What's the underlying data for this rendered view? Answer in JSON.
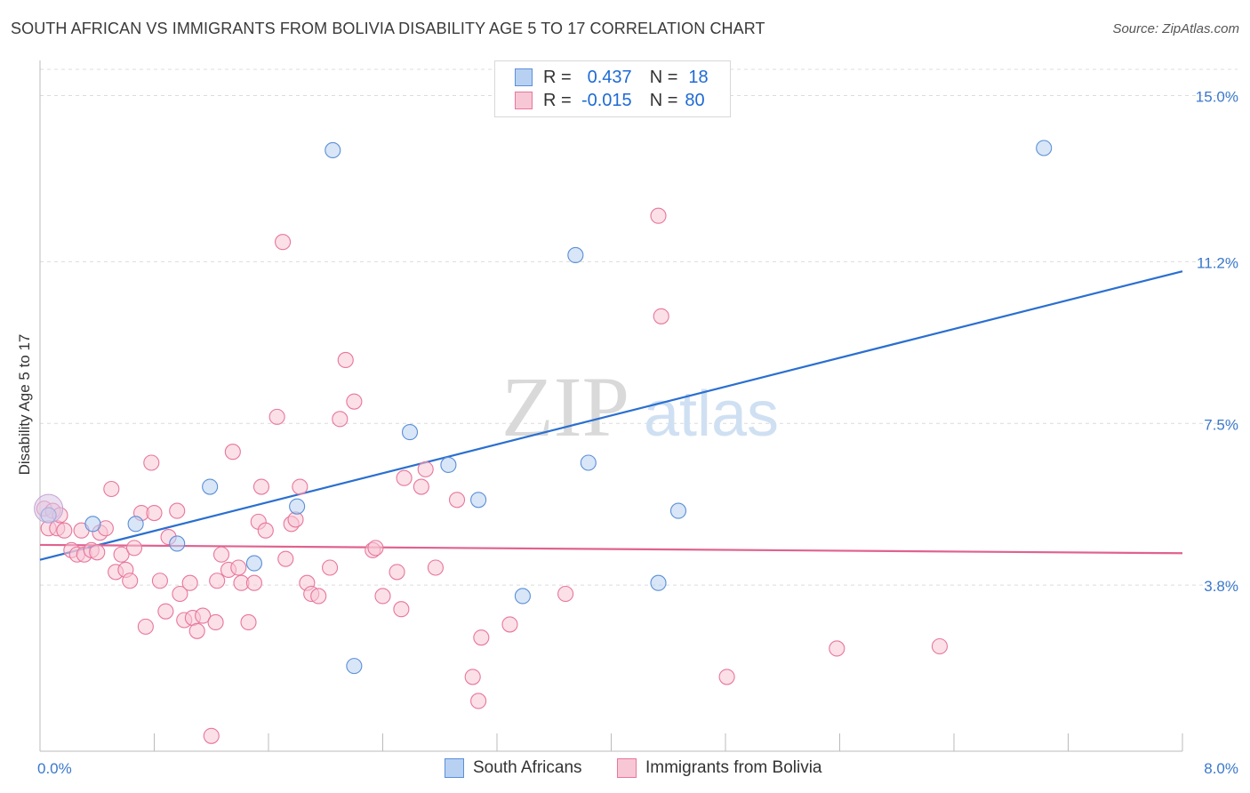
{
  "header": {
    "title": "SOUTH AFRICAN VS IMMIGRANTS FROM BOLIVIA DISABILITY AGE 5 TO 17 CORRELATION CHART",
    "source": "Source: ZipAtlas.com"
  },
  "watermark": {
    "zip": "ZIP",
    "atlas": "atlas"
  },
  "legend": {
    "r_label": "R =",
    "n_label": "N =",
    "rows": [
      {
        "r": "0.437",
        "n": "18",
        "color": "#5b8fd6",
        "fill": "#b8d1f3"
      },
      {
        "r": "-0.015",
        "n": "80",
        "color": "#e8769b",
        "fill": "#f8c7d6"
      }
    ]
  },
  "chart_data": {
    "type": "scatter",
    "title": "SOUTH AFRICAN VS IMMIGRANTS FROM BOLIVIA DISABILITY AGE 5 TO 17 CORRELATION CHART",
    "xlabel": "",
    "ylabel": "Disability Age 5 to 17",
    "xlim": [
      0,
      8.0
    ],
    "ylim": [
      0,
      15.6
    ],
    "x_tick_labels": [
      "0.0%",
      "8.0%"
    ],
    "y_ticks": [
      3.8,
      7.5,
      11.2,
      15.0
    ],
    "y_tick_labels": [
      "3.8%",
      "7.5%",
      "11.2%",
      "15.0%"
    ],
    "grid": true,
    "legend_position": "top-center",
    "series": [
      {
        "name": "South Africans",
        "color": "#5b8fd6",
        "fill": "#b8d1f3",
        "trend": {
          "x": [
            0,
            8.0
          ],
          "y": [
            4.38,
            10.98
          ]
        },
        "points": [
          {
            "x": 0.06,
            "y": 5.4
          },
          {
            "x": 0.37,
            "y": 5.2
          },
          {
            "x": 0.67,
            "y": 5.2
          },
          {
            "x": 0.96,
            "y": 4.75
          },
          {
            "x": 1.19,
            "y": 6.05
          },
          {
            "x": 1.5,
            "y": 4.3
          },
          {
            "x": 1.8,
            "y": 5.6
          },
          {
            "x": 2.05,
            "y": 13.75
          },
          {
            "x": 2.2,
            "y": 1.95
          },
          {
            "x": 2.59,
            "y": 7.3
          },
          {
            "x": 2.86,
            "y": 6.55
          },
          {
            "x": 3.07,
            "y": 5.75
          },
          {
            "x": 3.38,
            "y": 3.55
          },
          {
            "x": 3.75,
            "y": 11.35
          },
          {
            "x": 3.84,
            "y": 6.6
          },
          {
            "x": 4.33,
            "y": 3.85
          },
          {
            "x": 4.47,
            "y": 5.5
          },
          {
            "x": 7.03,
            "y": 13.8
          }
        ]
      },
      {
        "name": "Immigrants from Bolivia",
        "color": "#e8769b",
        "fill": "#f8c7d6",
        "trend": {
          "x": [
            0,
            8.0
          ],
          "y": [
            4.72,
            4.53
          ]
        },
        "points": [
          {
            "x": 0.03,
            "y": 5.55
          },
          {
            "x": 0.06,
            "y": 5.1
          },
          {
            "x": 0.09,
            "y": 5.5
          },
          {
            "x": 0.12,
            "y": 5.1
          },
          {
            "x": 0.14,
            "y": 5.4
          },
          {
            "x": 0.17,
            "y": 5.05
          },
          {
            "x": 0.22,
            "y": 4.6
          },
          {
            "x": 0.26,
            "y": 4.5
          },
          {
            "x": 0.29,
            "y": 5.05
          },
          {
            "x": 0.31,
            "y": 4.5
          },
          {
            "x": 0.36,
            "y": 4.6
          },
          {
            "x": 0.4,
            "y": 4.55
          },
          {
            "x": 0.42,
            "y": 5.0
          },
          {
            "x": 0.46,
            "y": 5.1
          },
          {
            "x": 0.5,
            "y": 6.0
          },
          {
            "x": 0.53,
            "y": 4.1
          },
          {
            "x": 0.57,
            "y": 4.5
          },
          {
            "x": 0.6,
            "y": 4.15
          },
          {
            "x": 0.63,
            "y": 3.9
          },
          {
            "x": 0.66,
            "y": 4.65
          },
          {
            "x": 0.71,
            "y": 5.45
          },
          {
            "x": 0.74,
            "y": 2.85
          },
          {
            "x": 0.78,
            "y": 6.6
          },
          {
            "x": 0.8,
            "y": 5.45
          },
          {
            "x": 0.84,
            "y": 3.9
          },
          {
            "x": 0.88,
            "y": 3.2
          },
          {
            "x": 0.9,
            "y": 4.9
          },
          {
            "x": 0.96,
            "y": 5.5
          },
          {
            "x": 0.98,
            "y": 3.6
          },
          {
            "x": 1.01,
            "y": 3.0
          },
          {
            "x": 1.05,
            "y": 3.85
          },
          {
            "x": 1.07,
            "y": 3.05
          },
          {
            "x": 1.1,
            "y": 2.75
          },
          {
            "x": 1.14,
            "y": 3.1
          },
          {
            "x": 1.2,
            "y": 0.35
          },
          {
            "x": 1.23,
            "y": 2.95
          },
          {
            "x": 1.24,
            "y": 3.9
          },
          {
            "x": 1.27,
            "y": 4.5
          },
          {
            "x": 1.32,
            "y": 4.15
          },
          {
            "x": 1.35,
            "y": 6.85
          },
          {
            "x": 1.39,
            "y": 4.2
          },
          {
            "x": 1.41,
            "y": 3.85
          },
          {
            "x": 1.46,
            "y": 2.95
          },
          {
            "x": 1.5,
            "y": 3.85
          },
          {
            "x": 1.53,
            "y": 5.25
          },
          {
            "x": 1.55,
            "y": 6.05
          },
          {
            "x": 1.58,
            "y": 5.05
          },
          {
            "x": 1.66,
            "y": 7.65
          },
          {
            "x": 1.7,
            "y": 11.65
          },
          {
            "x": 1.72,
            "y": 4.4
          },
          {
            "x": 1.76,
            "y": 5.2
          },
          {
            "x": 1.79,
            "y": 5.3
          },
          {
            "x": 1.82,
            "y": 6.05
          },
          {
            "x": 1.87,
            "y": 3.85
          },
          {
            "x": 1.9,
            "y": 3.6
          },
          {
            "x": 1.95,
            "y": 3.55
          },
          {
            "x": 2.03,
            "y": 4.2
          },
          {
            "x": 2.1,
            "y": 7.6
          },
          {
            "x": 2.14,
            "y": 8.95
          },
          {
            "x": 2.2,
            "y": 8.0
          },
          {
            "x": 2.33,
            "y": 4.6
          },
          {
            "x": 2.35,
            "y": 4.65
          },
          {
            "x": 2.4,
            "y": 3.55
          },
          {
            "x": 2.5,
            "y": 4.1
          },
          {
            "x": 2.53,
            "y": 3.25
          },
          {
            "x": 2.55,
            "y": 6.25
          },
          {
            "x": 2.67,
            "y": 6.05
          },
          {
            "x": 2.7,
            "y": 6.45
          },
          {
            "x": 2.77,
            "y": 4.2
          },
          {
            "x": 2.92,
            "y": 5.75
          },
          {
            "x": 3.03,
            "y": 1.7
          },
          {
            "x": 3.07,
            "y": 1.15
          },
          {
            "x": 3.09,
            "y": 2.6
          },
          {
            "x": 3.29,
            "y": 2.9
          },
          {
            "x": 3.68,
            "y": 3.6
          },
          {
            "x": 4.33,
            "y": 12.25
          },
          {
            "x": 4.35,
            "y": 9.95
          },
          {
            "x": 4.81,
            "y": 1.7
          },
          {
            "x": 5.58,
            "y": 2.35
          },
          {
            "x": 6.3,
            "y": 2.4
          }
        ]
      }
    ]
  }
}
